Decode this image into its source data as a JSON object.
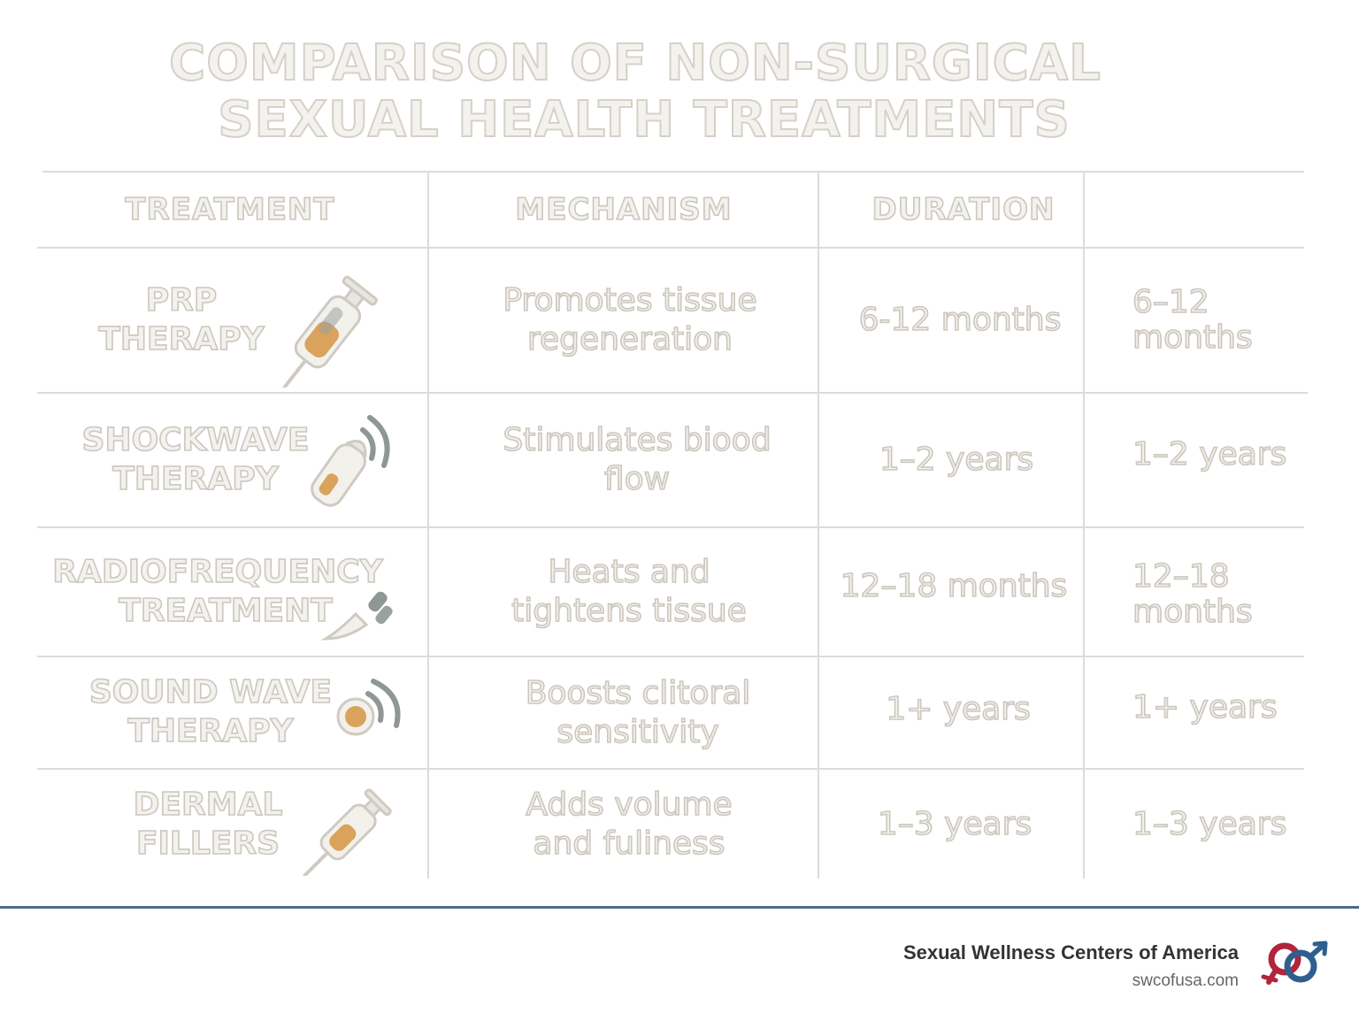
{
  "title": {
    "line1": "COMPARISON OF NON-SURGICAL",
    "line2": "SEXUAL HEALTH TREATMENTS"
  },
  "headers": [
    "TREATMENT",
    "MECHANISM",
    "DURATION",
    ""
  ],
  "rows": [
    {
      "name": [
        "PRP",
        "THERAPY"
      ],
      "icon": "syringe-icon",
      "mechanism": [
        "Promotes tissue",
        "regeneration"
      ],
      "duration": "6-12 months",
      "duration_alt": [
        "6–12",
        "months"
      ]
    },
    {
      "name": [
        "SHOCKWAVE",
        "THERAPY"
      ],
      "icon": "shockwave-device-icon",
      "mechanism": [
        "Stimulates biood",
        "flow"
      ],
      "duration": "1–2 years",
      "duration_alt": [
        "1–2 years"
      ]
    },
    {
      "name": [
        "RADIOFREQUENCY",
        "TREATMENT"
      ],
      "icon": "radiofrequency-probe-icon",
      "mechanism": [
        "Heats and",
        "tightens tissue"
      ],
      "duration": "12–18 months",
      "duration_alt": [
        "12–18",
        "months"
      ]
    },
    {
      "name": [
        "SOUND WAVE",
        "THERAPY"
      ],
      "icon": "sound-wave-device-icon",
      "mechanism": [
        "Boosts clitoral",
        "sensitivity"
      ],
      "duration": "1+ years",
      "duration_alt": [
        "1+ years"
      ]
    },
    {
      "name": [
        "DERMAL",
        "FILLERS"
      ],
      "icon": "filler-syringe-icon",
      "mechanism": [
        "Adds volume",
        "and fuliness"
      ],
      "duration": "1–3 years",
      "duration_alt": [
        "1–3 years"
      ]
    }
  ],
  "footer": {
    "organization": "Sexual Wellness Centers of America",
    "website": "swcofusa.com",
    "logo": "gender-symbols-logo"
  },
  "colors": {
    "text_outline": "#ccc7be",
    "grid": "#dcdcd8",
    "accent_amber": "#d9a35c",
    "icon_gray": "#8f9696",
    "footer_rule": "#4a6b8a",
    "logo_red": "#b0243c",
    "logo_blue": "#2f5f8f"
  }
}
